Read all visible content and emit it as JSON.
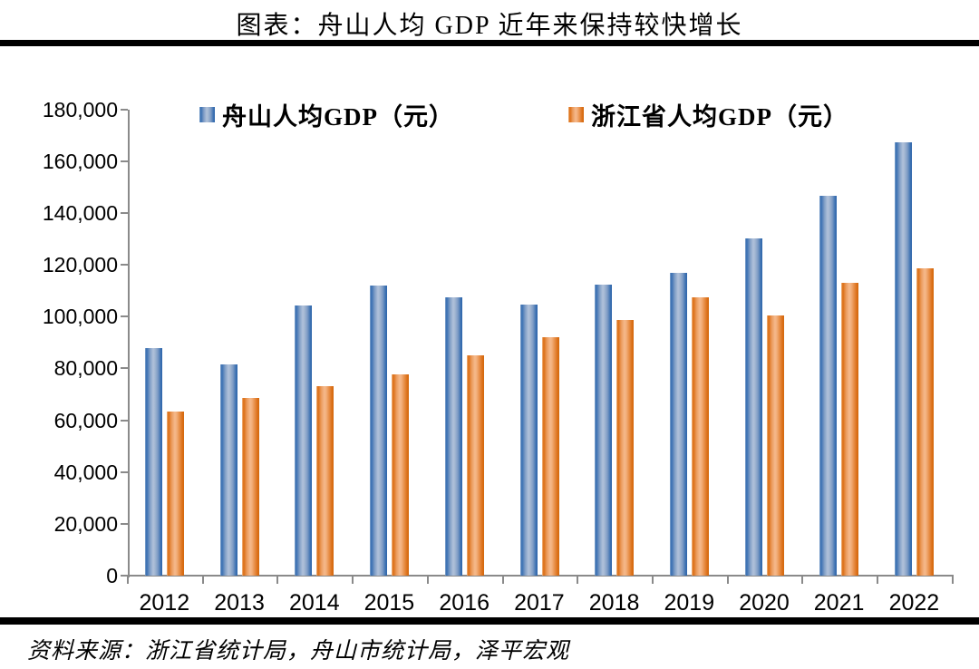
{
  "page": {
    "title": "图表：舟山人均 GDP 近年来保持较快增长",
    "source": "资料来源：浙江省统计局，舟山市统计局，泽平宏观"
  },
  "colors": {
    "zhoushan_blue": "#3A70B2",
    "zhoushan_blue_edge": "#2D64A9",
    "zhoushan_blue_light": "#B0C1DA",
    "zhejiang_orange": "#DC7018",
    "zhejiang_orange_edge": "#D3680F",
    "zhejiang_orange_light": "#F5B98C",
    "axis_gray": "#8A8A8A",
    "divider_black": "#000000",
    "text_black": "#000000",
    "background": "#FFFFFF"
  },
  "chart_data": {
    "type": "bar",
    "title": "图表：舟山人均 GDP 近年来保持较快增长",
    "categories": [
      "2012",
      "2013",
      "2014",
      "2015",
      "2016",
      "2017",
      "2018",
      "2019",
      "2020",
      "2021",
      "2022"
    ],
    "series": [
      {
        "name": "舟山人均GDP（元）",
        "color": "#3A70B2",
        "values": [
          87900,
          81500,
          104200,
          112000,
          107300,
          104800,
          112400,
          116800,
          130200,
          146700,
          167200
        ]
      },
      {
        "name": "浙江省人均GDP（元）",
        "color": "#DC7018",
        "values": [
          63400,
          68600,
          73000,
          77700,
          84900,
          92200,
          98600,
          107600,
          100600,
          113200,
          118500
        ]
      }
    ],
    "xlabel": "",
    "ylabel": "",
    "ylim": [
      0,
      180000
    ],
    "ytick_step": 20000,
    "ytick_labels": [
      "0",
      "20,000",
      "40,000",
      "60,000",
      "80,000",
      "100,000",
      "120,000",
      "140,000",
      "160,000",
      "180,000"
    ],
    "legend_position": "top",
    "grid": false,
    "source": "资料来源：浙江省统计局，舟山市统计局，泽平宏观"
  }
}
